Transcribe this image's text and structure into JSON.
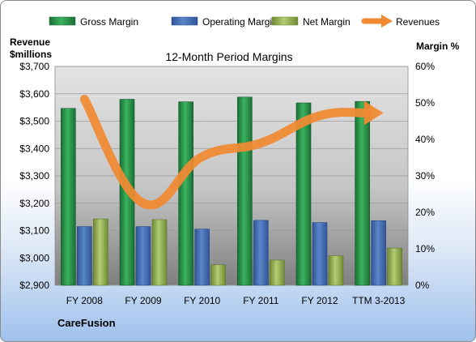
{
  "chart_data": {
    "type": "bar",
    "title": "12-Month Period Margins",
    "company": "CareFusion",
    "categories": [
      "FY 2008",
      "FY 2009",
      "FY 2010",
      "FY 2011",
      "FY 2012",
      "TTM 3-2013"
    ],
    "series": [
      {
        "name": "Gross Margin",
        "axis": "right",
        "values": [
          48.5,
          51.0,
          50.3,
          51.6,
          50.0,
          50.4
        ]
      },
      {
        "name": "Operating Margin",
        "axis": "right",
        "values": [
          16.1,
          16.1,
          15.4,
          17.8,
          17.2,
          17.7
        ]
      },
      {
        "name": "Net Margin",
        "axis": "right",
        "values": [
          18.2,
          18.0,
          5.6,
          6.9,
          8.1,
          10.2
        ]
      },
      {
        "name": "Revenues",
        "type": "line",
        "axis": "left",
        "values": [
          3580,
          3200,
          3370,
          3420,
          3520,
          3530
        ]
      }
    ],
    "left_axis": {
      "label_line1": "Revenue",
      "label_line2": "$millions",
      "min": 2900,
      "max": 3700,
      "ticks": [
        "$2,900",
        "$3,000",
        "$3,100",
        "$3,200",
        "$3,300",
        "$3,400",
        "$3,500",
        "$3,600",
        "$3,700"
      ]
    },
    "right_axis": {
      "label": "Margin %",
      "min": 0,
      "max": 60,
      "ticks": [
        "0%",
        "10%",
        "20%",
        "30%",
        "40%",
        "50%",
        "60%"
      ]
    },
    "legend_position": "top",
    "grid": true,
    "colors": {
      "gross": "#2e9a4f",
      "operating": "#4a73b8",
      "net": "#9bbb59",
      "revenues": "#f08a33"
    }
  }
}
